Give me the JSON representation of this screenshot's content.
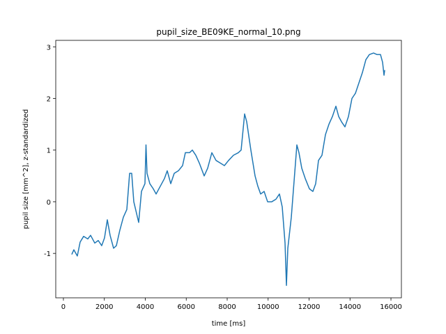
{
  "chart_data": {
    "type": "line",
    "title": "pupil_size_BE09KE_normal_10.png",
    "x_label": "time [ms]",
    "y_label": "pupil size [mm^2], z-standardized",
    "xlim": [
      -374,
      16510
    ],
    "ylim": [
      -1.86,
      3.125
    ],
    "xticks": [
      0,
      2000,
      4000,
      6000,
      8000,
      10000,
      12000,
      14000,
      16000
    ],
    "yticks": [
      -1,
      0,
      1,
      2,
      3
    ],
    "series": [
      {
        "color": "#1f77b4",
        "x": [
          408,
          510,
          680,
          817,
          987,
          1190,
          1328,
          1532,
          1702,
          1872,
          2008,
          2145,
          2281,
          2451,
          2587,
          2757,
          2928,
          3098,
          3234,
          3336,
          3438,
          3677,
          3813,
          3983,
          4034,
          4085,
          4221,
          4391,
          4528,
          4732,
          4936,
          5072,
          5243,
          5413,
          5617,
          5821,
          5957,
          6162,
          6298,
          6468,
          6638,
          6877,
          7047,
          7251,
          7455,
          7660,
          7864,
          8068,
          8306,
          8545,
          8681,
          8851,
          8953,
          9157,
          9362,
          9498,
          9634,
          9804,
          9974,
          10179,
          10383,
          10553,
          10689,
          10826,
          10894,
          10962,
          11132,
          11268,
          11404,
          11506,
          11643,
          11813,
          12017,
          12187,
          12323,
          12460,
          12630,
          12800,
          12970,
          13140,
          13311,
          13447,
          13583,
          13753,
          13923,
          14094,
          14264,
          14434,
          14604,
          14774,
          14945,
          15149,
          15319,
          15489,
          15591,
          15660,
          15694
        ],
        "values": [
          -1.02,
          -0.93,
          -1.05,
          -0.78,
          -0.67,
          -0.72,
          -0.65,
          -0.8,
          -0.75,
          -0.85,
          -0.7,
          -0.35,
          -0.65,
          -0.9,
          -0.85,
          -0.55,
          -0.3,
          -0.15,
          0.55,
          0.55,
          0.0,
          -0.4,
          0.2,
          0.35,
          1.1,
          0.55,
          0.35,
          0.25,
          0.15,
          0.3,
          0.45,
          0.6,
          0.35,
          0.55,
          0.6,
          0.7,
          0.95,
          0.95,
          1.0,
          0.9,
          0.75,
          0.5,
          0.65,
          0.95,
          0.8,
          0.75,
          0.7,
          0.8,
          0.9,
          0.95,
          1.0,
          1.7,
          1.55,
          1.0,
          0.5,
          0.3,
          0.15,
          0.2,
          0.0,
          0.0,
          0.05,
          0.15,
          -0.1,
          -0.8,
          -1.62,
          -0.9,
          -0.3,
          0.4,
          1.1,
          0.95,
          0.65,
          0.45,
          0.25,
          0.2,
          0.35,
          0.8,
          0.9,
          1.3,
          1.5,
          1.65,
          1.85,
          1.65,
          1.55,
          1.45,
          1.65,
          2.0,
          2.1,
          2.3,
          2.5,
          2.75,
          2.85,
          2.88,
          2.85,
          2.85,
          2.7,
          2.45,
          2.55
        ]
      }
    ]
  }
}
